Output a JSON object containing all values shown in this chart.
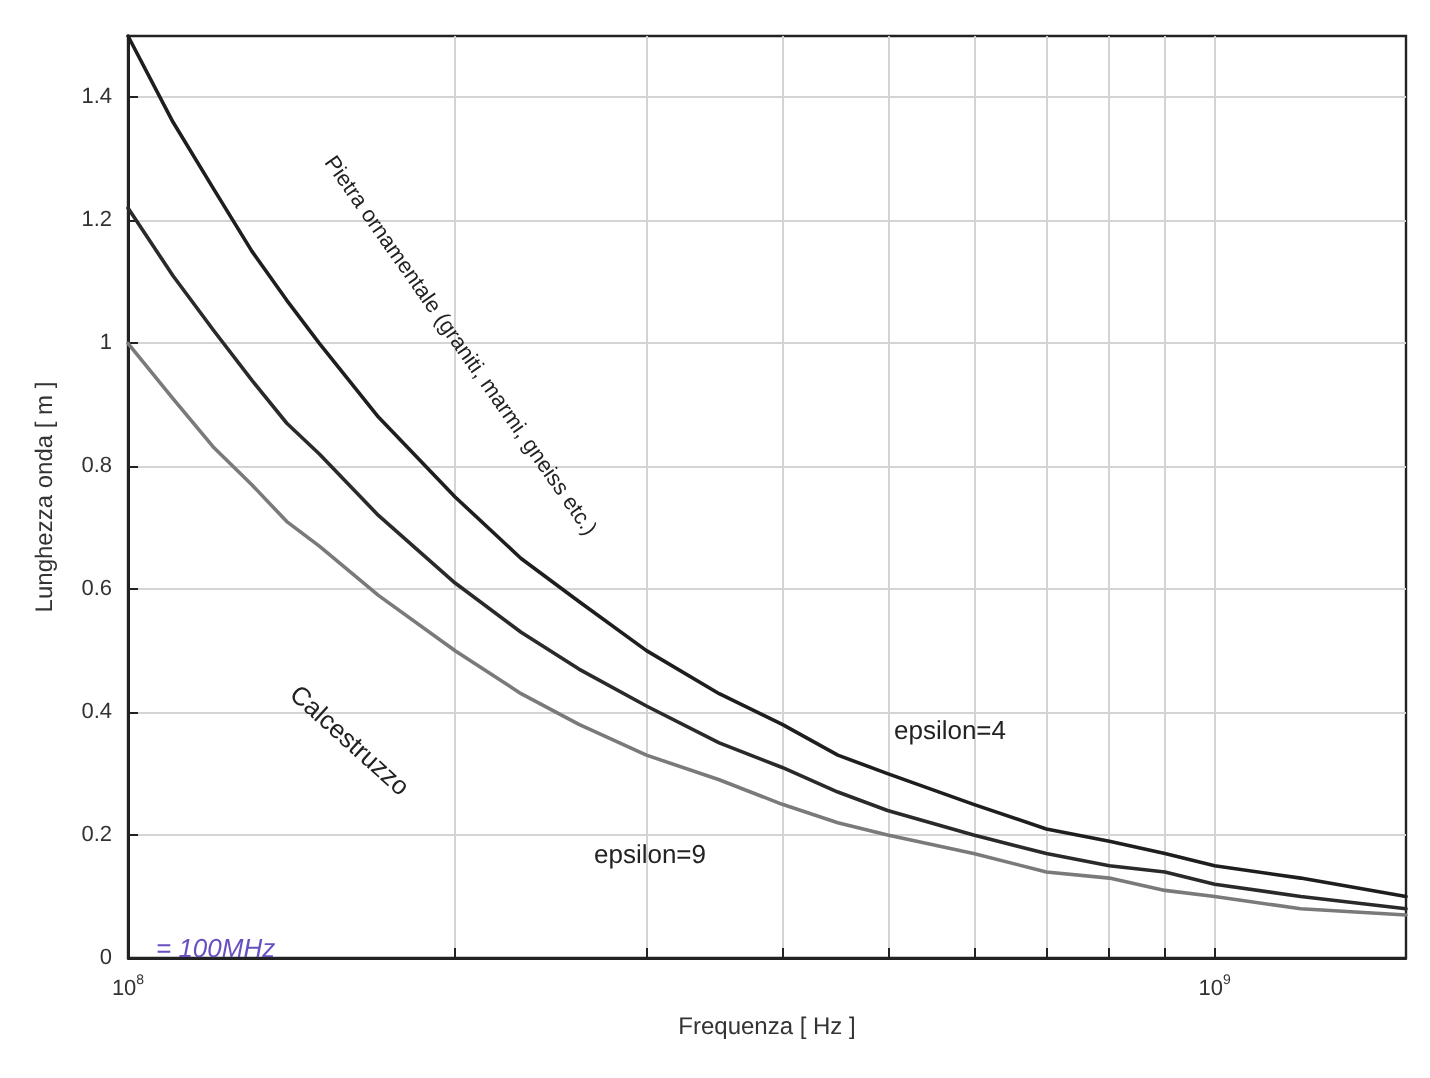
{
  "chart_data": {
    "type": "line",
    "xlabel": "Frequenza [ Hz ]",
    "ylabel": "Lunghezza onda [ m ]",
    "log": "x",
    "x": [
      100000000,
      110000000,
      120000000,
      130000000,
      140000000,
      150000000,
      170000000,
      200000000,
      230000000,
      260000000,
      300000000,
      350000000,
      400000000,
      450000000,
      500000000,
      600000000,
      700000000,
      800000000,
      900000000,
      1000000000,
      1200000000,
      1500000000
    ],
    "series": [
      {
        "color": "#1e1e1e",
        "values": [
          1.5,
          1.36,
          1.25,
          1.15,
          1.07,
          1.0,
          0.88,
          0.75,
          0.65,
          0.58,
          0.5,
          0.43,
          0.38,
          0.33,
          0.3,
          0.25,
          0.21,
          0.19,
          0.17,
          0.15,
          0.13,
          0.1
        ]
      },
      {
        "color": "#2a2a2a",
        "values": [
          1.22,
          1.11,
          1.02,
          0.94,
          0.87,
          0.82,
          0.72,
          0.61,
          0.53,
          0.47,
          0.41,
          0.35,
          0.31,
          0.27,
          0.24,
          0.2,
          0.17,
          0.15,
          0.14,
          0.12,
          0.1,
          0.08
        ]
      },
      {
        "color": "#7a7a7a",
        "values": [
          1.0,
          0.91,
          0.83,
          0.77,
          0.71,
          0.67,
          0.59,
          0.5,
          0.43,
          0.38,
          0.33,
          0.29,
          0.25,
          0.22,
          0.2,
          0.17,
          0.14,
          0.13,
          0.11,
          0.1,
          0.08,
          0.07
        ]
      }
    ],
    "xlim": [
      100000000,
      1500000000
    ],
    "xticks": [
      {
        "value": 100000000,
        "label": "10$^{8}$"
      },
      {
        "value": 200000000,
        "label": null
      },
      {
        "value": 300000000,
        "label": null
      },
      {
        "value": 400000000,
        "label": null
      },
      {
        "value": 500000000,
        "label": null
      },
      {
        "value": 600000000,
        "label": null
      },
      {
        "value": 700000000,
        "label": null
      },
      {
        "value": 800000000,
        "label": null
      },
      {
        "value": 900000000,
        "label": null
      },
      {
        "value": 1000000000,
        "label": "10$^{9}$"
      }
    ],
    "ylim": [
      0,
      1.5
    ],
    "yticks": [
      0,
      0.2,
      0.4,
      0.6,
      0.8,
      1,
      1.2,
      1.4
    ],
    "grid": true,
    "annotations": [
      "Pietra ornamentale (graniti, marmi, gneiss etc.)",
      "Calcestruzzo",
      "epsilon=4",
      "epsilon=9",
      "= 100MHz"
    ]
  }
}
